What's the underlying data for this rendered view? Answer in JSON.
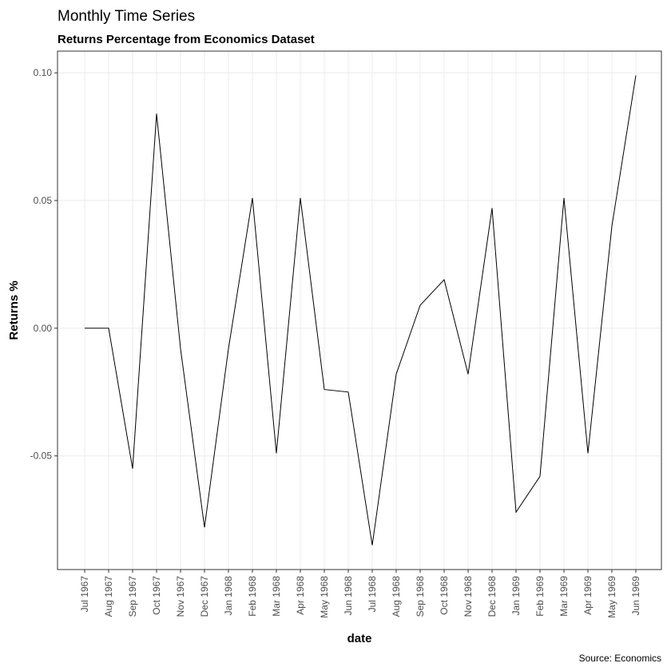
{
  "chart_data": {
    "type": "line",
    "title": "Monthly Time Series",
    "subtitle": "Returns Percentage from Economics Dataset",
    "xlabel": "date",
    "ylabel": "Returns %",
    "caption": "Source: Economics",
    "x": [
      "Jul 1967",
      "Aug 1967",
      "Sep 1967",
      "Oct 1967",
      "Nov 1967",
      "Dec 1967",
      "Jan 1968",
      "Feb 1968",
      "Mar 1968",
      "Apr 1968",
      "May 1968",
      "Jun 1968",
      "Jul 1968",
      "Aug 1968",
      "Sep 1968",
      "Oct 1968",
      "Nov 1968",
      "Dec 1968",
      "Jan 1969",
      "Feb 1969",
      "Mar 1969",
      "Apr 1969",
      "May 1969",
      "Jun 1969"
    ],
    "series": [
      {
        "values": [
          0.0,
          0.0,
          -0.055,
          0.084,
          -0.008,
          -0.078,
          -0.008,
          0.051,
          -0.049,
          0.051,
          -0.024,
          -0.025,
          -0.085,
          -0.018,
          0.009,
          0.019,
          -0.018,
          0.047,
          -0.072,
          -0.058,
          0.051,
          -0.049,
          0.04,
          0.099
        ]
      }
    ],
    "ylim": [
      -0.0945,
      0.1085
    ],
    "yticks": [
      -0.05,
      0.0,
      0.05,
      0.1
    ],
    "ytick_labels": [
      "-0.05",
      "0.00",
      "0.05",
      "0.10"
    ],
    "grid": true,
    "line_color": "#000000"
  }
}
